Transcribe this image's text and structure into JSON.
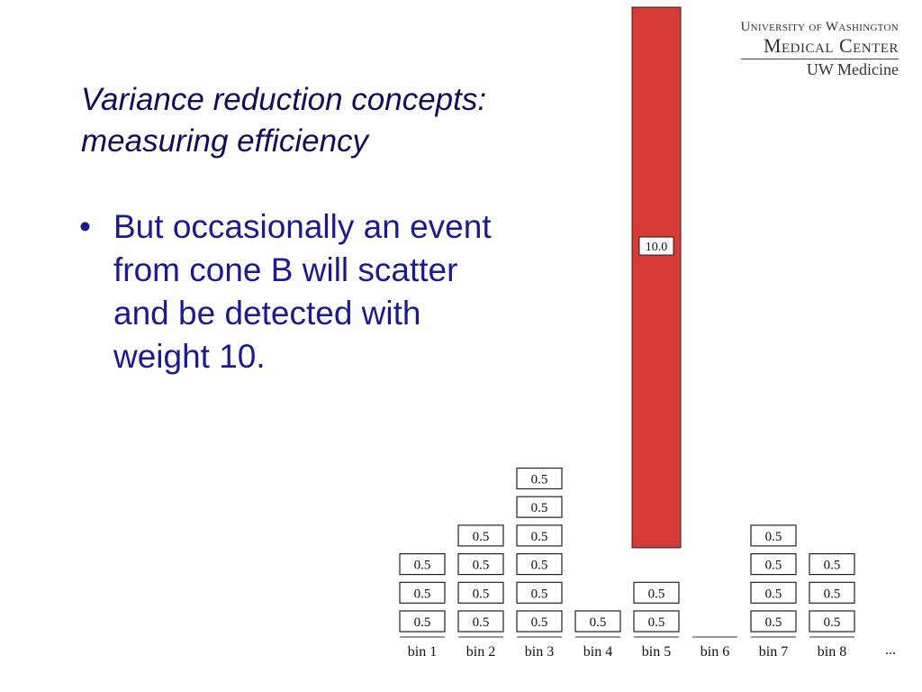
{
  "slide": {
    "title_line1": "Variance reduction concepts:",
    "title_line2": "measuring efficiency",
    "bullet_mark": "•",
    "bullet_text": "But occasionally an event from cone B will scatter and be detected with weight 10."
  },
  "logo": {
    "line1": "University of Washington",
    "line2": "Medical Center",
    "line3": "UW Medicine"
  },
  "chart_data": {
    "type": "bar",
    "categories": [
      "bin 1",
      "bin 2",
      "bin 3",
      "bin 4",
      "bin 5",
      "bin 6",
      "bin 7",
      "bin 8"
    ],
    "trailing_label": "...",
    "stacks": [
      [
        0.5,
        0.5,
        0.5
      ],
      [
        0.5,
        0.5,
        0.5,
        0.5
      ],
      [
        0.5,
        0.5,
        0.5,
        0.5,
        0.5,
        0.5
      ],
      [
        0.5
      ],
      [
        0.5,
        0.5,
        10.0
      ],
      [],
      [
        0.5,
        0.5,
        0.5,
        0.5
      ],
      [
        0.5,
        0.5,
        0.5
      ]
    ],
    "highlight_value": 10.0,
    "highlight_color": "#d63a34",
    "box_border_color": "#222222"
  }
}
